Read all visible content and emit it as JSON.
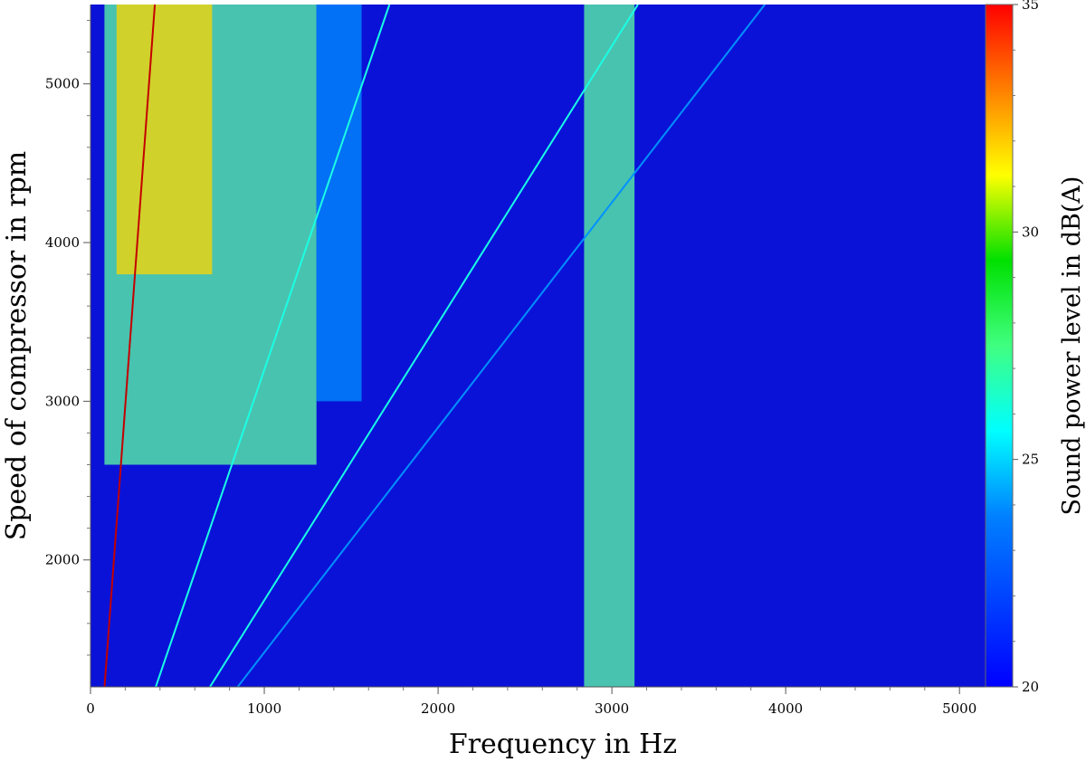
{
  "chart_data": {
    "type": "heatmap",
    "title": "",
    "xlabel": "Frequency in Hz",
    "ylabel": "Speed of compressor in rpm",
    "xlim": [
      0,
      5150
    ],
    "ylim": [
      1200,
      5500
    ],
    "xticks": [
      0,
      1000,
      2000,
      3000,
      4000,
      5000
    ],
    "xtick_labels": [
      "0",
      "1000",
      "2000",
      "3000",
      "4000",
      "5000"
    ],
    "yticks": [
      2000,
      3000,
      4000,
      5000
    ],
    "ytick_labels": [
      "2000",
      "3000",
      "4000",
      "5000"
    ],
    "colorbar": {
      "label": "Sound power level in dB(A)",
      "range": [
        20,
        35
      ],
      "ticks": [
        20,
        25,
        30,
        35
      ],
      "tick_labels": [
        "20",
        "25",
        "30",
        "35"
      ],
      "colormap": "jet"
    },
    "background_level": 20.3,
    "broadband_regions": [
      {
        "f_min": 80,
        "f_max": 1300,
        "rpm_min": 2600,
        "rpm_max": 5500,
        "level": 27
      },
      {
        "f_min": 150,
        "f_max": 700,
        "rpm_min": 3800,
        "rpm_max": 5500,
        "level": 30
      },
      {
        "f_min": 1300,
        "f_max": 1560,
        "rpm_min": 3000,
        "rpm_max": 5500,
        "level": 24
      },
      {
        "f_min": 2840,
        "f_max": 3130,
        "rpm_min": 1200,
        "rpm_max": 5500,
        "level": 27
      }
    ],
    "order_lines": [
      {
        "name": "",
        "f_at_5500_rpm": 370,
        "level": 34
      },
      {
        "name": "",
        "f_at_5500_rpm": 1720,
        "level": 26
      },
      {
        "name": "",
        "f_at_5500_rpm": 3150,
        "level": 26
      },
      {
        "name": "",
        "f_at_5500_rpm": 3880,
        "level": 24
      }
    ]
  }
}
